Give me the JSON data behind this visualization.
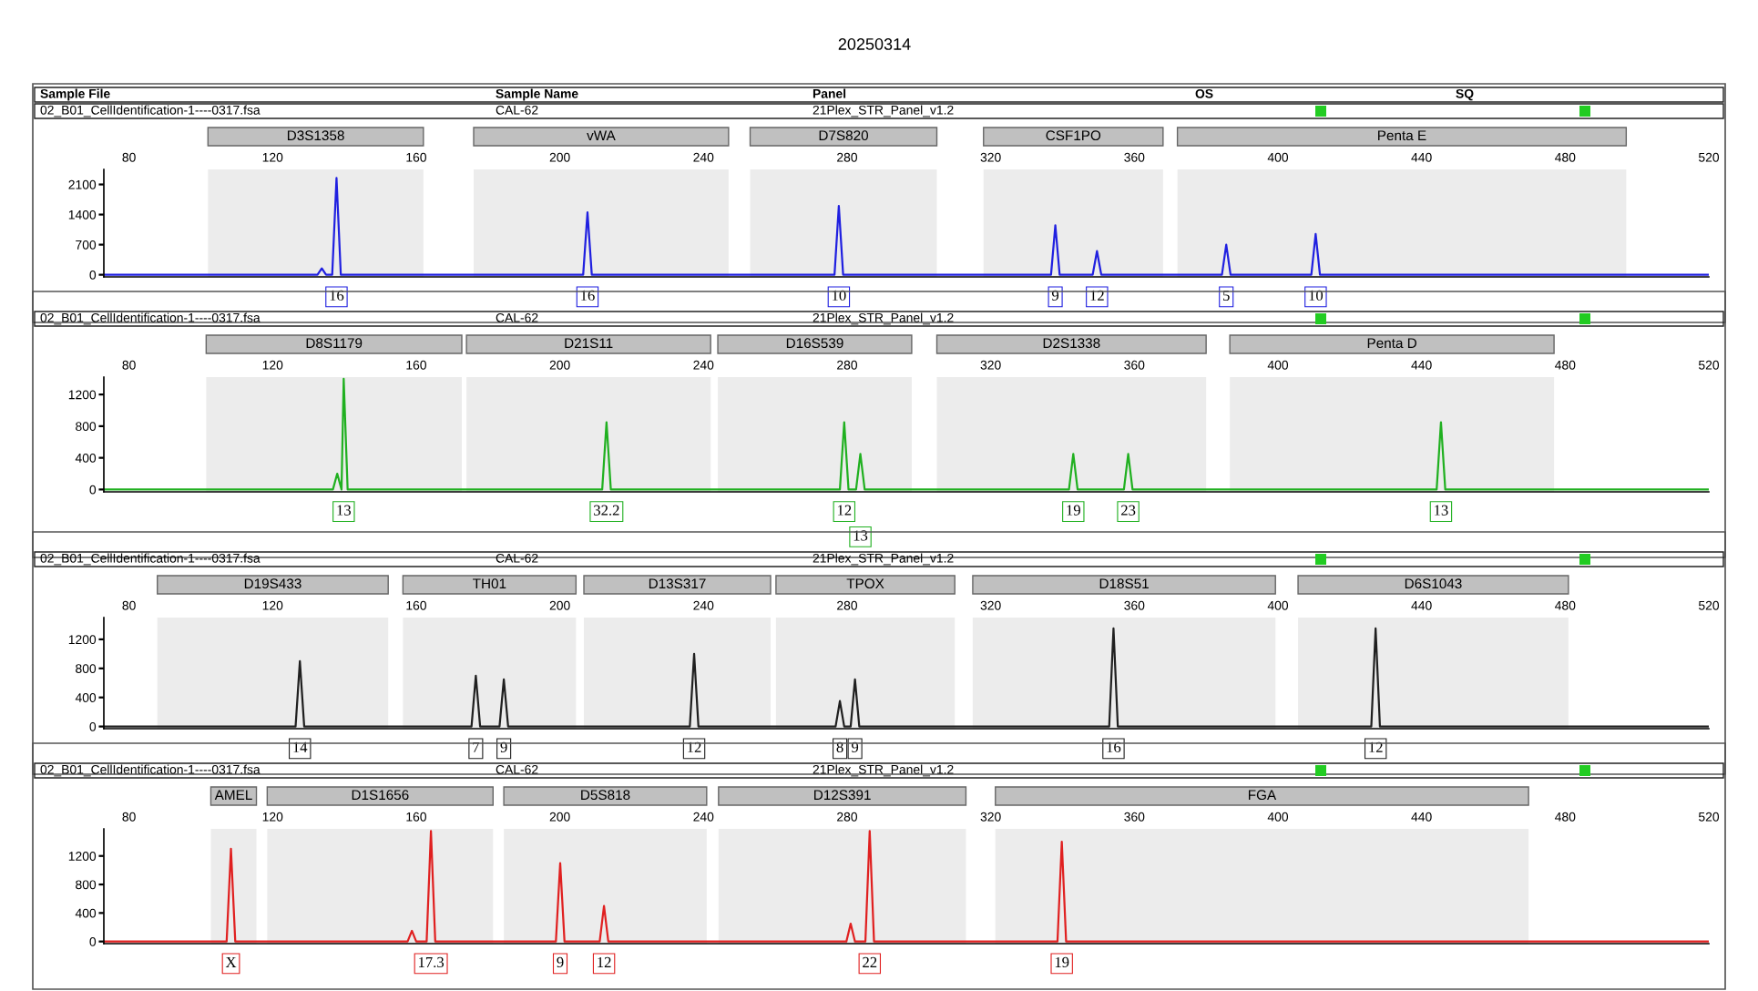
{
  "chart_data": [
    {
      "type": "line",
      "title": "20250314",
      "annotations": [
        "Sample File",
        "Sample Name",
        "Panel",
        "OS",
        "SQ",
        "02_B01_CellIdentification-1----0317.fsa",
        "CAL-62",
        "21Plex_STR_Panel_v1.2",
        {
          "text": "16",
          "x": 137.8,
          "y": 0
        },
        {
          "text": "16",
          "x": 207.7,
          "y": 0
        },
        {
          "text": "10",
          "x": 277.7,
          "y": 0
        },
        {
          "text": "9",
          "x": 338,
          "y": 0
        },
        {
          "text": "12",
          "x": 349.6,
          "y": 0
        },
        {
          "text": "5",
          "x": 385.6,
          "y": 0
        },
        {
          "text": "10",
          "x": 410.5,
          "y": 0
        }
      ],
      "series": [
        {
          "color": "#2020e0",
          "x": [
            73,
            132.5,
            133.7,
            134.9,
            136.6,
            137.8,
            139,
            206.5,
            207.7,
            208.9,
            276.5,
            277.7,
            278.9,
            336.8,
            338,
            339.2,
            348.4,
            349.6,
            350.8,
            384.4,
            385.6,
            386.8,
            409.3,
            410.5,
            411.7,
            520
          ],
          "values": [
            0,
            0,
            150,
            0,
            0,
            2250,
            0,
            0,
            1450,
            0,
            0,
            1600,
            0,
            0,
            1150,
            0,
            0,
            550,
            0,
            0,
            700,
            0,
            0,
            950,
            0,
            0
          ]
        }
      ],
      "bands": [
        {
          "axis": "x",
          "from": 102,
          "to": 162,
          "label": "D3S1358",
          "color": "#c0c0c0"
        },
        {
          "axis": "x",
          "from": 176,
          "to": 247,
          "label": "vWA",
          "color": "#c0c0c0"
        },
        {
          "axis": "x",
          "from": 253,
          "to": 305,
          "label": "D7S820",
          "color": "#c0c0c0"
        },
        {
          "axis": "x",
          "from": 318,
          "to": 368,
          "label": "CSF1PO",
          "color": "#c0c0c0"
        },
        {
          "axis": "x",
          "from": 372,
          "to": 497,
          "label": "Penta E",
          "color": "#c0c0c0"
        }
      ],
      "xlim": [
        73,
        520
      ],
      "xticks": [
        80,
        120,
        160,
        200,
        240,
        280,
        320,
        360,
        400,
        440,
        480,
        520
      ],
      "ylim": [
        -50,
        2450
      ],
      "yticks": [
        0,
        700,
        1400,
        2100
      ],
      "grid": false
    },
    {
      "type": "line",
      "annotations": [
        "02_B01_CellIdentification-1----0317.fsa",
        "CAL-62",
        "21Plex_STR_Panel_v1.2",
        {
          "text": "13",
          "x": 139.8,
          "y": 0
        },
        {
          "text": "32.2",
          "x": 213,
          "y": 0
        },
        {
          "text": "12",
          "x": 279.2,
          "y": 0
        },
        {
          "text": "13",
          "x": 283.7,
          "y": 0
        },
        {
          "text": "19",
          "x": 343,
          "y": 0
        },
        {
          "text": "23",
          "x": 358.3,
          "y": 0
        },
        {
          "text": "13",
          "x": 445.4,
          "y": 0
        }
      ],
      "series": [
        {
          "color": "#20b020",
          "x": [
            73,
            136.8,
            138,
            139.2,
            139.8,
            140.9,
            211.8,
            213,
            214.2,
            278,
            279.2,
            280.4,
            282.5,
            283.7,
            284.9,
            341.8,
            343,
            344.2,
            357.1,
            358.3,
            359.5,
            444.2,
            445.4,
            446.6,
            520
          ],
          "values": [
            0,
            0,
            200,
            0,
            1400,
            0,
            0,
            850,
            0,
            0,
            850,
            0,
            0,
            450,
            0,
            0,
            450,
            0,
            0,
            450,
            0,
            0,
            850,
            0,
            0
          ]
        }
      ],
      "bands": [
        {
          "axis": "x",
          "from": 101.5,
          "to": 172.7,
          "label": "D8S1179",
          "color": "#c0c0c0"
        },
        {
          "axis": "x",
          "from": 174,
          "to": 242,
          "label": "D21S11",
          "color": "#c0c0c0"
        },
        {
          "axis": "x",
          "from": 244,
          "to": 298,
          "label": "D16S539",
          "color": "#c0c0c0"
        },
        {
          "axis": "x",
          "from": 305,
          "to": 380,
          "label": "D2S1338",
          "color": "#c0c0c0"
        },
        {
          "axis": "x",
          "from": 386.6,
          "to": 476.9,
          "label": "Penta D",
          "color": "#c0c0c0"
        }
      ],
      "xlim": [
        73,
        520
      ],
      "xticks": [
        80,
        120,
        160,
        200,
        240,
        280,
        320,
        360,
        400,
        440,
        480,
        520
      ],
      "ylim": [
        -30,
        1420
      ],
      "yticks": [
        0,
        400,
        800,
        1200
      ],
      "grid": false
    },
    {
      "type": "line",
      "annotations": [
        "02_B01_CellIdentification-1----0317.fsa",
        "CAL-62",
        "21Plex_STR_Panel_v1.2",
        {
          "text": "14",
          "x": 127.6,
          "y": 0
        },
        {
          "text": "7",
          "x": 176.6,
          "y": 0
        },
        {
          "text": "9",
          "x": 184.4,
          "y": 0
        },
        {
          "text": "12",
          "x": 237.4,
          "y": 0
        },
        {
          "text": "8",
          "x": 278,
          "y": 0
        },
        {
          "text": "9",
          "x": 282.2,
          "y": 0
        },
        {
          "text": "16",
          "x": 354.2,
          "y": 0
        },
        {
          "text": "12",
          "x": 427.2,
          "y": 0
        }
      ],
      "series": [
        {
          "color": "#202020",
          "x": [
            73,
            126.4,
            127.6,
            128.8,
            175.4,
            176.6,
            177.8,
            183.2,
            184.4,
            185.6,
            236.2,
            237.4,
            238.6,
            276.8,
            278,
            279.2,
            281,
            282.2,
            283.4,
            353,
            354.2,
            355.4,
            426,
            427.2,
            428.4,
            520
          ],
          "values": [
            0,
            0,
            900,
            0,
            0,
            700,
            0,
            0,
            650,
            0,
            0,
            1000,
            0,
            0,
            350,
            0,
            0,
            650,
            0,
            0,
            1350,
            0,
            0,
            1350,
            0,
            0
          ]
        }
      ],
      "bands": [
        {
          "axis": "x",
          "from": 87.9,
          "to": 152.2,
          "label": "D19S433",
          "color": "#c0c0c0"
        },
        {
          "axis": "x",
          "from": 156.3,
          "to": 204.5,
          "label": "TH01",
          "color": "#c0c0c0"
        },
        {
          "axis": "x",
          "from": 206.7,
          "to": 258.7,
          "label": "D13S317",
          "color": "#c0c0c0"
        },
        {
          "axis": "x",
          "from": 260.2,
          "to": 310,
          "label": "TPOX",
          "color": "#c0c0c0"
        },
        {
          "axis": "x",
          "from": 315,
          "to": 399.3,
          "label": "D18S51",
          "color": "#c0c0c0"
        },
        {
          "axis": "x",
          "from": 405.6,
          "to": 480.9,
          "label": "D6S1043",
          "color": "#c0c0c0"
        }
      ],
      "xlim": [
        73,
        520
      ],
      "xticks": [
        80,
        120,
        160,
        200,
        240,
        280,
        320,
        360,
        400,
        440,
        480,
        520
      ],
      "ylim": [
        -30,
        1500
      ],
      "yticks": [
        0,
        400,
        800,
        1200
      ],
      "grid": false
    },
    {
      "type": "line",
      "annotations": [
        "02_B01_CellIdentification-1----0317.fsa",
        "CAL-62",
        "21Plex_STR_Panel_v1.2",
        {
          "text": "X",
          "x": 108.4,
          "y": 0
        },
        {
          "text": "17.3",
          "x": 164.1,
          "y": 0
        },
        {
          "text": "9",
          "x": 200.1,
          "y": 0
        },
        {
          "text": "12",
          "x": 212.3,
          "y": 0
        },
        {
          "text": "22",
          "x": 286.3,
          "y": 0
        },
        {
          "text": "19",
          "x": 339.8,
          "y": 0
        }
      ],
      "series": [
        {
          "color": "#e02020",
          "x": [
            73,
            107.2,
            108.4,
            109.6,
            157.6,
            158.8,
            160,
            162.9,
            164.1,
            165.3,
            198.9,
            200.1,
            201.3,
            211.1,
            212.3,
            213.5,
            279.8,
            281,
            282.2,
            285.1,
            286.3,
            287.5,
            338.6,
            339.8,
            341,
            520
          ],
          "values": [
            0,
            0,
            1300,
            0,
            0,
            150,
            0,
            0,
            1550,
            0,
            0,
            1100,
            0,
            0,
            500,
            0,
            0,
            250,
            0,
            0,
            1550,
            0,
            0,
            1400,
            0,
            0
          ]
        }
      ],
      "bands": [
        {
          "axis": "x",
          "from": 102.8,
          "to": 115.5,
          "label": "AMEL",
          "color": "#c0c0c0"
        },
        {
          "axis": "x",
          "from": 118.5,
          "to": 181.4,
          "label": "D1S1656",
          "color": "#c0c0c0"
        },
        {
          "axis": "x",
          "from": 184.4,
          "to": 240.9,
          "label": "D5S818",
          "color": "#c0c0c0"
        },
        {
          "axis": "x",
          "from": 244.2,
          "to": 313.1,
          "label": "D12S391",
          "color": "#c0c0c0"
        },
        {
          "axis": "x",
          "from": 321.3,
          "to": 469.8,
          "label": "FGA",
          "color": "#c0c0c0"
        }
      ],
      "xlim": [
        73,
        520
      ],
      "xticks": [
        80,
        120,
        160,
        200,
        240,
        280,
        320,
        360,
        400,
        440,
        480,
        520
      ],
      "ylim": [
        -30,
        1580
      ],
      "yticks": [
        0,
        400,
        800,
        1200
      ],
      "grid": false
    }
  ]
}
